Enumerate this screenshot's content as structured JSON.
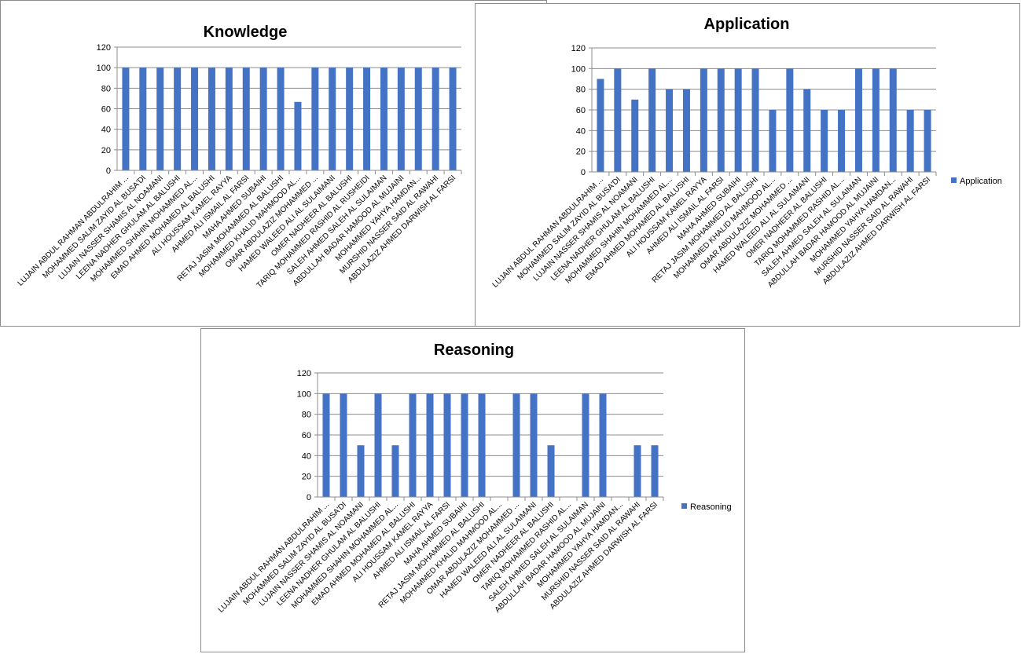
{
  "chart_data": [
    {
      "type": "bar",
      "title": "Knowledge",
      "legend": null,
      "ylim": [
        0,
        120
      ],
      "yticks": [
        0,
        20,
        40,
        60,
        80,
        100,
        120
      ],
      "grid": true,
      "color": "#4472C4",
      "categories": [
        "LUJAIN ABDUL RAHMAN ABDULRAHIM ...",
        "MOHAMMED SALIM ZAYID AL BUSA'DI",
        "LUJAIN NASSER SHAMIS AL NOAMANI",
        "LEENA NADHER GHULAM AL BALUSHI",
        "MOHAMMED SHAHIN MOHAMMED AL...",
        "EMAD AHMED MOHAMED AL BALUSHI",
        "ALI HOUSSAM KAMEL RAYYA",
        "AHMED ALI ISMAIL AL FARSI",
        "MAHA AHMED SUBAIHI",
        "RETAJ JASIM MOHAMMED AL BALUSHI",
        "MOHAMMED KHALID MAHMOOD AL...",
        "OMAR ABDULAZIZ MOHAMMED ...",
        "HAMED WALEED ALI AL SULAIMANI",
        "OMER NADHEER AL BALUSHI",
        "TARIQ MOHAMMED RASHID AL RUSHEIDI",
        "SALEH AHMED SALEH AL SULAIMAN",
        "ABDULLAH BADAR HAMOOD AL MUJAINI",
        "MOHAMMED YAHYA HAMDAN...",
        "MURSHID NASSER SAID AL RAWAHI",
        "ABDULAZIZ AHMED DARWISH AL FARSI"
      ],
      "values": [
        100,
        100,
        100,
        100,
        100,
        100,
        100,
        100,
        100,
        100,
        66.67,
        100,
        100,
        100,
        100,
        100,
        100,
        100,
        100,
        100
      ]
    },
    {
      "type": "bar",
      "title": "Application",
      "legend": "Application",
      "legend_position": "right",
      "ylim": [
        0,
        120
      ],
      "yticks": [
        0,
        20,
        40,
        60,
        80,
        100,
        120
      ],
      "grid": true,
      "color": "#4472C4",
      "categories": [
        "LUJAIN ABDUL RAHMAN ABDULRAHIM ...",
        "MOHAMMED SALIM ZAYID AL BUSA'DI",
        "LUJAIN NASSER SHAMIS AL NOAMANI",
        "LEENA NADHER GHULAM AL BALUSHI",
        "MOHAMMED SHAHIN MOHAMMED AL...",
        "EMAD AHMED MOHAMED AL BALUSHI",
        "ALI HOUSSAM KAMEL RAYYA",
        "AHMED ALI ISMAIL AL FARSI",
        "MAHA AHMED SUBAIHI",
        "RETAJ JASIM MOHAMMED AL BALUSHI",
        "MOHAMMED KHALID MAHMOOD AL...",
        "OMAR ABDULAZIZ MOHAMMED ...",
        "HAMED WALEED ALI AL SULAIMANI",
        "OMER NADHEER AL BALUSHI",
        "TARIQ MOHAMMED RASHID AL...",
        "SALEH AHMED SALEH AL SULAIMAN",
        "ABDULLAH BADAR HAMOOD AL MUJAINI",
        "MOHAMMED YAHYA HAMDAN...",
        "MURSHID NASSER SAID AL RAWAHI",
        "ABDULAZIZ AHMED DARWISH AL FARSI"
      ],
      "values": [
        90,
        100,
        70,
        100,
        80,
        80,
        100,
        100,
        100,
        100,
        60,
        100,
        80,
        60,
        60,
        100,
        100,
        100,
        60,
        60
      ]
    },
    {
      "type": "bar",
      "title": "Reasoning",
      "legend": "Reasoning",
      "legend_position": "right",
      "ylim": [
        0,
        120
      ],
      "yticks": [
        0,
        20,
        40,
        60,
        80,
        100,
        120
      ],
      "grid": true,
      "color": "#4472C4",
      "categories": [
        "LUJAIN ABDUL RAHMAN ABDULRAHIM ...",
        "MOHAMMED SALIM ZAYID AL BUSA'DI",
        "LUJAIN NASSER SHAMIS AL NOAMANI",
        "LEENA NADHER GHULAM AL BALUSHI",
        "MOHAMMED SHAHIN MOHAMMED AL...",
        "EMAD AHMED MOHAMED AL BALUSHI",
        "ALI HOUSSAM KAMEL RAYYA",
        "AHMED ALI ISMAIL AL FARSI",
        "MAHA AHMED SUBAIHI",
        "RETAJ JASIM MOHAMMED AL BALUSHI",
        "MOHAMMED KHALID MAHMOOD AL...",
        "OMAR ABDULAZIZ MOHAMMED ...",
        "HAMED WALEED ALI AL SULAIMANI",
        "OMER NADHEER AL BALUSHI",
        "TARIQ MOHAMMED RASHID AL...",
        "SALEH AHMED SALEH AL SULAIMAN",
        "ABDULLAH BADAR HAMOOD AL MUJAINI",
        "MOHAMMED YAHYA HAMDAN...",
        "MURSHID NASSER SAID AL RAWAHI",
        "ABDULAZIZ AHMED DARWISH AL FARSI"
      ],
      "values": [
        100,
        100,
        50,
        100,
        50,
        100,
        100,
        100,
        100,
        100,
        0,
        100,
        100,
        50,
        0,
        100,
        100,
        0,
        50,
        50
      ]
    }
  ]
}
